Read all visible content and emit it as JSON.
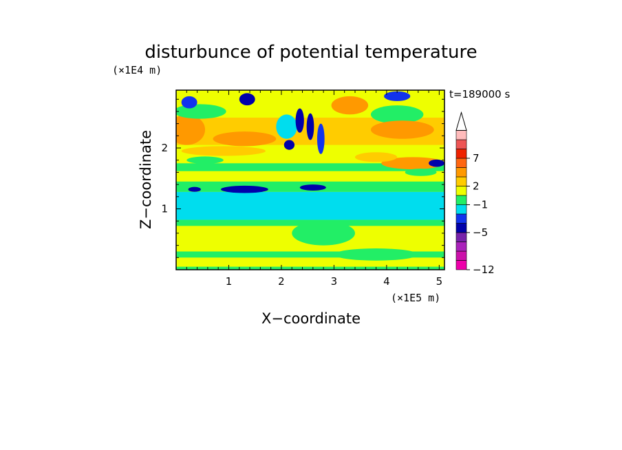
{
  "chart_data": {
    "type": "heatmap",
    "title": "disturbunce of potential temperature",
    "time_label": "t=189000 s",
    "xlabel": "X−coordinate",
    "ylabel": "Z−coordinate",
    "x_scale_label": "(×1E5 m)",
    "y_scale_label": "(×1E4 m)",
    "xlim": [
      0,
      5.1
    ],
    "ylim": [
      0,
      2.95
    ],
    "x_ticks": [
      {
        "value": 1,
        "label": "1"
      },
      {
        "value": 2,
        "label": "2"
      },
      {
        "value": 3,
        "label": "3"
      },
      {
        "value": 4,
        "label": "4"
      },
      {
        "value": 5,
        "label": "5"
      }
    ],
    "y_ticks": [
      {
        "value": 1,
        "label": "1"
      },
      {
        "value": 2,
        "label": "2"
      }
    ],
    "colorbar": {
      "colors": [
        "#ee00aa",
        "#cc11aa",
        "#aa22bb",
        "#7722aa",
        "#0000aa",
        "#1133ee",
        "#00ddee",
        "#22ee66",
        "#eeff00",
        "#ffcc00",
        "#ff9900",
        "#ff6611",
        "#ee2200",
        "#ee5555",
        "#ffbbbb"
      ],
      "labels": [
        {
          "level": 0,
          "text": "−12"
        },
        {
          "level": 4,
          "text": "−5"
        },
        {
          "level": 7,
          "text": "−1"
        },
        {
          "level": 9,
          "text": "2"
        },
        {
          "level": 12,
          "text": "7"
        }
      ],
      "extend_max": true
    },
    "field_regions": {
      "background": 8,
      "bands": [
        {
          "z": [
            0.0,
            0.05
          ],
          "level": 7
        },
        {
          "z": [
            0.05,
            0.2
          ],
          "level": 8
        },
        {
          "z": [
            0.2,
            0.3
          ],
          "level": 7
        },
        {
          "z": [
            0.3,
            0.72
          ],
          "level": 8
        },
        {
          "z": [
            0.72,
            0.82
          ],
          "level": 7
        },
        {
          "z": [
            0.82,
            1.28
          ],
          "level": 6
        },
        {
          "z": [
            1.28,
            1.45
          ],
          "level": 7
        },
        {
          "z": [
            1.45,
            1.62
          ],
          "level": 8
        },
        {
          "z": [
            1.62,
            1.75
          ],
          "level": 7
        },
        {
          "z": [
            1.75,
            2.05
          ],
          "level": 8
        },
        {
          "z": [
            2.05,
            2.5
          ],
          "level": 9
        },
        {
          "z": [
            2.5,
            2.95
          ],
          "level": 8
        }
      ],
      "blobs": [
        {
          "x": 0.2,
          "z": 2.3,
          "rx": 0.35,
          "rz": 0.25,
          "level": 10
        },
        {
          "x": 0.45,
          "z": 2.6,
          "rx": 0.5,
          "rz": 0.12,
          "level": 7
        },
        {
          "x": 0.25,
          "z": 2.75,
          "rx": 0.15,
          "rz": 0.1,
          "level": 5
        },
        {
          "x": 1.35,
          "z": 2.8,
          "rx": 0.15,
          "rz": 0.1,
          "level": 4
        },
        {
          "x": 1.3,
          "z": 2.15,
          "rx": 0.6,
          "rz": 0.12,
          "level": 10
        },
        {
          "x": 0.9,
          "z": 1.95,
          "rx": 0.8,
          "rz": 0.08,
          "level": 9
        },
        {
          "x": 0.55,
          "z": 1.8,
          "rx": 0.35,
          "rz": 0.06,
          "level": 7
        },
        {
          "x": 1.3,
          "z": 1.32,
          "rx": 0.45,
          "rz": 0.06,
          "level": 4
        },
        {
          "x": 0.35,
          "z": 1.32,
          "rx": 0.12,
          "rz": 0.04,
          "level": 4
        },
        {
          "x": 2.1,
          "z": 2.35,
          "rx": 0.2,
          "rz": 0.2,
          "level": 6
        },
        {
          "x": 2.35,
          "z": 2.45,
          "rx": 0.08,
          "rz": 0.2,
          "level": 4
        },
        {
          "x": 2.55,
          "z": 2.35,
          "rx": 0.07,
          "rz": 0.22,
          "level": 4
        },
        {
          "x": 2.75,
          "z": 2.15,
          "rx": 0.07,
          "rz": 0.25,
          "level": 5
        },
        {
          "x": 2.15,
          "z": 2.05,
          "rx": 0.1,
          "rz": 0.08,
          "level": 4
        },
        {
          "x": 2.6,
          "z": 1.35,
          "rx": 0.25,
          "rz": 0.05,
          "level": 4
        },
        {
          "x": 3.3,
          "z": 2.7,
          "rx": 0.35,
          "rz": 0.15,
          "level": 10
        },
        {
          "x": 4.2,
          "z": 2.55,
          "rx": 0.5,
          "rz": 0.15,
          "level": 7
        },
        {
          "x": 4.3,
          "z": 2.3,
          "rx": 0.6,
          "rz": 0.15,
          "level": 10
        },
        {
          "x": 4.5,
          "z": 1.75,
          "rx": 0.6,
          "rz": 0.1,
          "level": 10
        },
        {
          "x": 4.95,
          "z": 1.75,
          "rx": 0.15,
          "rz": 0.06,
          "level": 4
        },
        {
          "x": 4.65,
          "z": 1.6,
          "rx": 0.3,
          "rz": 0.06,
          "level": 7
        },
        {
          "x": 3.8,
          "z": 1.85,
          "rx": 0.4,
          "rz": 0.08,
          "level": 9
        },
        {
          "x": 4.2,
          "z": 2.85,
          "rx": 0.25,
          "rz": 0.08,
          "level": 5
        },
        {
          "x": 2.8,
          "z": 0.6,
          "rx": 0.6,
          "rz": 0.2,
          "level": 7
        },
        {
          "x": 3.8,
          "z": 0.25,
          "rx": 0.8,
          "rz": 0.1,
          "level": 7
        }
      ]
    }
  }
}
